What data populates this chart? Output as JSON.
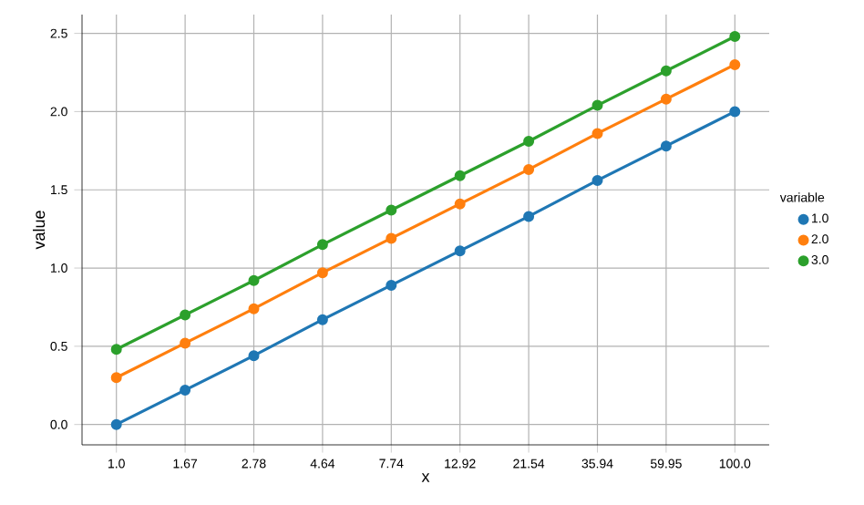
{
  "chart_data": {
    "type": "line",
    "xlabel": "x",
    "ylabel": "value",
    "legend_title": "variable",
    "categories": [
      "1.0",
      "1.67",
      "2.78",
      "4.64",
      "7.74",
      "12.92",
      "21.54",
      "35.94",
      "59.95",
      "100.0"
    ],
    "series": [
      {
        "name": "1.0",
        "color": "#1f77b4",
        "values": [
          0,
          0.22,
          0.44,
          0.67,
          0.89,
          1.11,
          1.33,
          1.56,
          1.78,
          2.0
        ]
      },
      {
        "name": "2.0",
        "color": "#ff7f0e",
        "values": [
          0.3,
          0.52,
          0.74,
          0.97,
          1.19,
          1.41,
          1.63,
          1.86,
          2.08,
          2.3
        ]
      },
      {
        "name": "3.0",
        "color": "#2ca02c",
        "values": [
          0.48,
          0.7,
          0.92,
          1.15,
          1.37,
          1.59,
          1.81,
          2.04,
          2.26,
          2.48
        ]
      }
    ],
    "ylim": [
      -0.13,
      2.62
    ],
    "yticks": [
      {
        "value": 0,
        "label": "0.0"
      },
      {
        "value": 0.5,
        "label": "0.5"
      },
      {
        "value": 1,
        "label": "1.0"
      },
      {
        "value": 1.5,
        "label": "1.5"
      },
      {
        "value": 2,
        "label": "2.0"
      },
      {
        "value": 2.5,
        "label": "2.5"
      }
    ],
    "grid": true,
    "legend": "right",
    "marker": "circle",
    "line_style": "solid"
  }
}
